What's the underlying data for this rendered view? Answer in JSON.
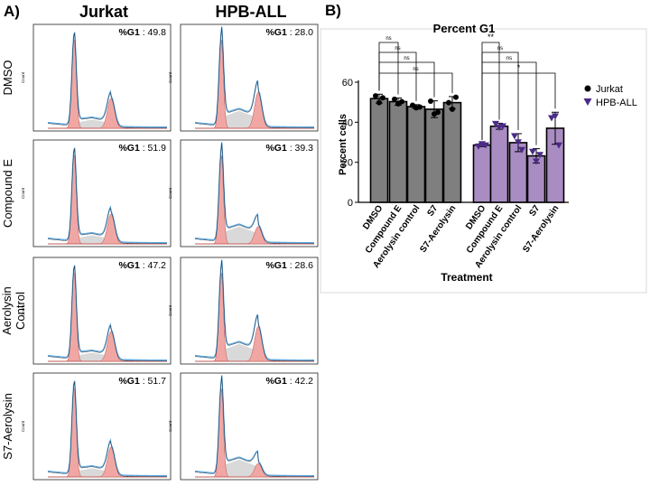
{
  "panel_a": {
    "label": "A)",
    "columns": [
      "Jurkat",
      "HPB-ALL"
    ],
    "rows": [
      "DMSO",
      "Compound E",
      "Aerolysin Control",
      "S7-Aerolysin"
    ],
    "row_label_lines": [
      [
        "DMSO"
      ],
      [
        "Compound E"
      ],
      [
        "Aerolysin",
        "Control"
      ],
      [
        "S7-Aerolysin"
      ]
    ],
    "y_axis_label": "Count",
    "g1_prefix": "%G1",
    "g1_values": [
      [
        49.8,
        28.0
      ],
      [
        51.9,
        39.3
      ],
      [
        47.2,
        28.6
      ],
      [
        51.7,
        42.2
      ]
    ],
    "g1_texts": [
      [
        ": 49.8",
        ": 28.0"
      ],
      [
        ": 51.9",
        ": 39.3"
      ],
      [
        ": 47.2",
        ": 28.6"
      ],
      [
        ": 51.7",
        ": 42.2"
      ]
    ],
    "colors": {
      "trace": "#5aa7e0",
      "g1_fill": "#f0a7a4",
      "s_fill": "#d9d9d9",
      "outline": "#222222"
    }
  },
  "chart_data": {
    "type": "bar",
    "panel_label": "B)",
    "title": "Percent G1",
    "xlabel": "Treatment",
    "ylabel": "Percent cells",
    "ylim": [
      0,
      60
    ],
    "yticks": [
      0,
      20,
      40,
      60
    ],
    "categories": [
      "DMSO",
      "Compound E",
      "Aerolysin control",
      "S7",
      "S7-Aerolysin"
    ],
    "series": [
      {
        "name": "Jurkat",
        "color": "#7f7f7f",
        "marker": "circle",
        "values": [
          51.8,
          50.3,
          47.8,
          46.5,
          49.8
        ],
        "sd": [
          2.2,
          1.8,
          1.0,
          4.2,
          3.0
        ],
        "points": [
          [
            53.2,
            49.8,
            52.2
          ],
          [
            51.5,
            49.2,
            50.3
          ],
          [
            48.5,
            47.2,
            47.6
          ],
          [
            50.5,
            44.1,
            45.0
          ],
          [
            49.8,
            46.5,
            52.5
          ]
        ]
      },
      {
        "name": "HPB-ALL",
        "color": "#a98dc2",
        "marker": "triangle-down",
        "values": [
          28.6,
          38.0,
          29.8,
          23.2,
          37.0
        ],
        "sd": [
          0.8,
          1.5,
          4.5,
          3.6,
          8.0
        ],
        "points": [
          [
            28.0,
            29.2,
            28.6
          ],
          [
            39.3,
            37.5,
            38.1
          ],
          [
            33.2,
            30.1,
            26.3
          ],
          [
            25.4,
            20.5,
            23.8
          ],
          [
            42.2,
            43.1,
            28.6
          ]
        ]
      }
    ],
    "comparisons": [
      {
        "series": "Jurkat",
        "from": "DMSO",
        "to": "Compound E",
        "label": "ns"
      },
      {
        "series": "Jurkat",
        "from": "DMSO",
        "to": "Aerolysin control",
        "label": "ns"
      },
      {
        "series": "Jurkat",
        "from": "DMSO",
        "to": "S7",
        "label": "ns"
      },
      {
        "series": "Jurkat",
        "from": "DMSO",
        "to": "S7-Aerolysin",
        "label": "ns"
      },
      {
        "series": "HPB-ALL",
        "from": "DMSO",
        "to": "Compound E",
        "label": "**"
      },
      {
        "series": "HPB-ALL",
        "from": "DMSO",
        "to": "Aerolysin control",
        "label": "ns"
      },
      {
        "series": "HPB-ALL",
        "from": "DMSO",
        "to": "S7",
        "label": "ns"
      },
      {
        "series": "HPB-ALL",
        "from": "DMSO",
        "to": "S7-Aerolysin",
        "label": "*"
      }
    ],
    "legend": {
      "placement": "right",
      "entries": [
        "Jurkat",
        "HPB-ALL"
      ],
      "marker_colors": [
        "#000000",
        "#4b2a86"
      ]
    }
  }
}
